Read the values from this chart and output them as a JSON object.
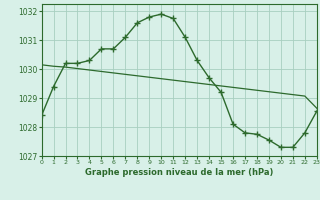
{
  "line1_x": [
    0,
    1,
    2,
    3,
    4,
    5,
    6,
    7,
    8,
    9,
    10,
    11,
    12,
    13,
    14,
    15,
    16,
    17,
    18,
    19,
    20,
    21,
    22,
    23
  ],
  "line1_y": [
    1028.4,
    1029.4,
    1030.2,
    1030.2,
    1030.3,
    1030.7,
    1030.7,
    1031.1,
    1031.6,
    1031.8,
    1031.9,
    1031.75,
    1031.1,
    1030.3,
    1029.7,
    1029.2,
    1028.1,
    1027.8,
    1027.75,
    1027.55,
    1027.3,
    1027.3,
    1027.8,
    1028.55
  ],
  "line2_x": [
    0,
    1,
    2,
    3,
    4,
    5,
    6,
    7,
    8,
    9,
    10,
    11,
    12,
    13,
    14,
    15,
    16,
    17,
    18,
    19,
    20,
    21,
    22,
    23
  ],
  "line2_y": [
    1030.15,
    1030.1,
    1030.07,
    1030.02,
    1029.97,
    1029.92,
    1029.87,
    1029.82,
    1029.77,
    1029.72,
    1029.67,
    1029.62,
    1029.57,
    1029.52,
    1029.47,
    1029.42,
    1029.37,
    1029.32,
    1029.27,
    1029.22,
    1029.17,
    1029.12,
    1029.07,
    1028.65
  ],
  "line_color": "#2d6a2d",
  "bg_color": "#d8f0e8",
  "grid_color": "#a8cfc0",
  "text_color": "#2d6a2d",
  "xlabel": "Graphe pression niveau de la mer (hPa)",
  "ylim": [
    1027.0,
    1032.25
  ],
  "xlim": [
    0,
    23
  ],
  "yticks": [
    1027,
    1028,
    1029,
    1030,
    1031,
    1032
  ],
  "xticks": [
    0,
    1,
    2,
    3,
    4,
    5,
    6,
    7,
    8,
    9,
    10,
    11,
    12,
    13,
    14,
    15,
    16,
    17,
    18,
    19,
    20,
    21,
    22,
    23
  ]
}
